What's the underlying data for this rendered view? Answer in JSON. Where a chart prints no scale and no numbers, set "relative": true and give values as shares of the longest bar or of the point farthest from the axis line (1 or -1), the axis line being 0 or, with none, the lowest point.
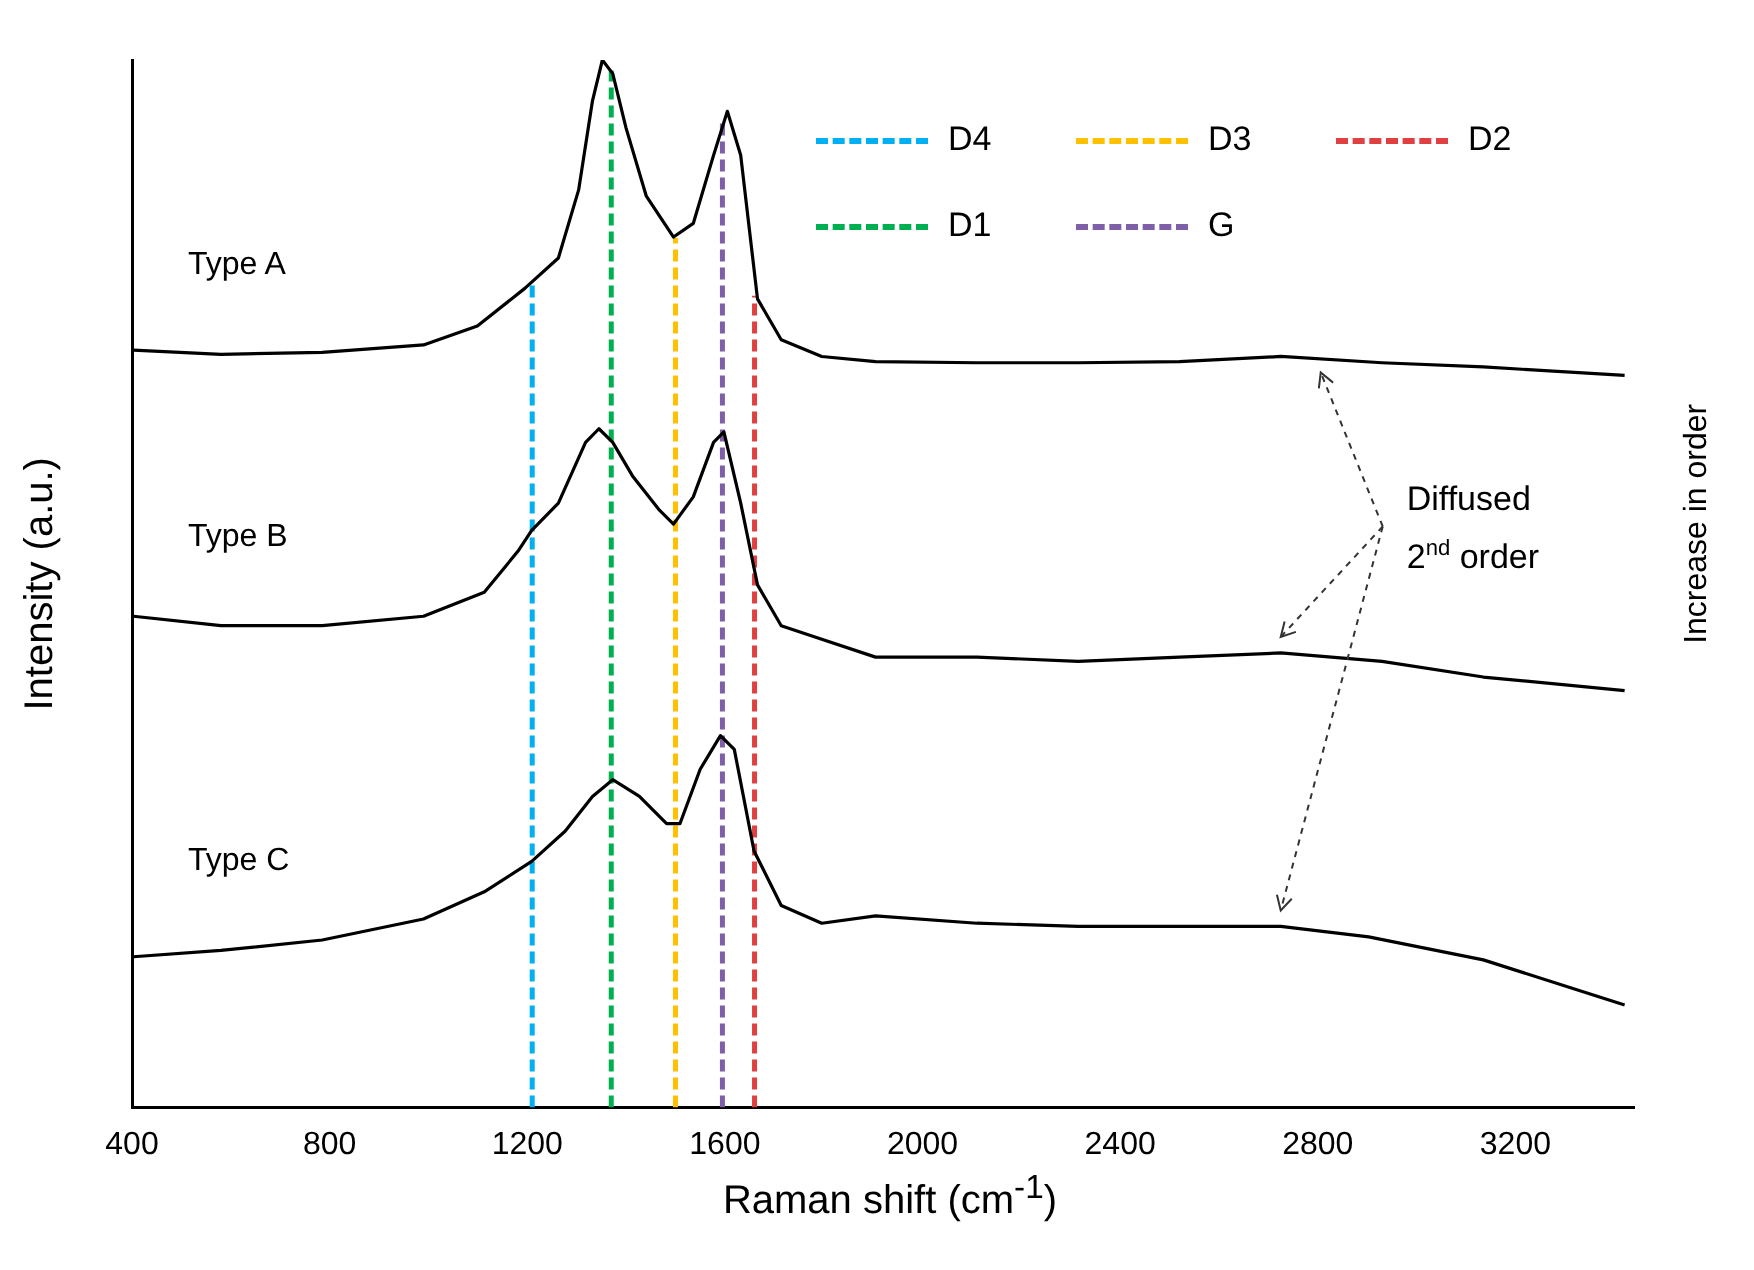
{
  "chart_data": {
    "type": "line",
    "xlabel": "Raman shift (cm$^{-1}$)",
    "ylabel": "Intensity (a.u.)",
    "y2label": "Increase in order",
    "relative": true,
    "xlim": [
      400,
      3440
    ],
    "xticks": [
      400,
      800,
      1200,
      1600,
      2000,
      2400,
      2800,
      3200
    ],
    "grid": false,
    "legend": "top right",
    "marker": "none",
    "line_style": "solid",
    "series": [
      {
        "name": "Type A",
        "color": "#000000",
        "x": [
          403,
          580,
          785,
          990,
          1099,
          1195,
          1263,
          1304,
          1332,
          1352,
          1373,
          1400,
          1441,
          1496,
          1536,
          1577,
          1605,
          1632,
          1666,
          1714,
          1796,
          1905,
          2110,
          2315,
          2520,
          2725,
          2930,
          3135,
          3421
        ],
        "values": [
          0.723,
          0.719,
          0.721,
          0.728,
          0.746,
          0.782,
          0.811,
          0.876,
          0.961,
          1,
          0.987,
          0.935,
          0.87,
          0.831,
          0.844,
          0.909,
          0.951,
          0.909,
          0.772,
          0.733,
          0.717,
          0.712,
          0.711,
          0.711,
          0.712,
          0.717,
          0.711,
          0.707,
          0.699
        ]
      },
      {
        "name": "Type B",
        "color": "#000000",
        "x": [
          403,
          580,
          785,
          990,
          1113,
          1181,
          1209,
          1263,
          1318,
          1345,
          1373,
          1413,
          1468,
          1496,
          1536,
          1577,
          1598,
          1632,
          1666,
          1714,
          1796,
          1905,
          2110,
          2315,
          2520,
          2725,
          2930,
          3135,
          3421
        ],
        "values": [
          0.469,
          0.46,
          0.46,
          0.469,
          0.492,
          0.531,
          0.551,
          0.577,
          0.635,
          0.648,
          0.635,
          0.603,
          0.57,
          0.557,
          0.583,
          0.635,
          0.645,
          0.577,
          0.499,
          0.46,
          0.447,
          0.43,
          0.43,
          0.426,
          0.43,
          0.434,
          0.426,
          0.411,
          0.398
        ]
      },
      {
        "name": "Type C",
        "color": "#000000",
        "x": [
          403,
          580,
          785,
          990,
          1113,
          1209,
          1277,
          1332,
          1373,
          1427,
          1482,
          1509,
          1550,
          1591,
          1619,
          1659,
          1714,
          1796,
          1905,
          2110,
          2315,
          2520,
          2725,
          2903,
          3135,
          3421
        ],
        "values": [
          0.144,
          0.15,
          0.16,
          0.18,
          0.206,
          0.235,
          0.264,
          0.297,
          0.313,
          0.297,
          0.271,
          0.271,
          0.323,
          0.355,
          0.342,
          0.245,
          0.193,
          0.176,
          0.183,
          0.176,
          0.173,
          0.173,
          0.173,
          0.163,
          0.141,
          0.098
        ]
      },
      {
        "name": "D4",
        "color": "#00b0f0",
        "line_style": "dashed",
        "x": [
          1210,
          1210
        ],
        "values": [
          0,
          0.79
        ]
      },
      {
        "name": "D1",
        "color": "#00b050",
        "line_style": "dashed",
        "x": [
          1370,
          1370
        ],
        "values": [
          0,
          0.99
        ]
      },
      {
        "name": "D3",
        "color": "#ffc000",
        "line_style": "dashed",
        "x": [
          1500,
          1500
        ],
        "values": [
          0,
          0.83
        ]
      },
      {
        "name": "G",
        "color": "#7f5fa8",
        "line_style": "dashed",
        "x": [
          1595,
          1595
        ],
        "values": [
          0,
          0.945
        ]
      },
      {
        "name": "D2",
        "color": "#e04040",
        "line_style": "dashed",
        "x": [
          1660,
          1660
        ],
        "values": [
          0,
          0.775
        ]
      }
    ],
    "annotations": [
      "Diffused 2$^{nd}$ order"
    ]
  }
}
